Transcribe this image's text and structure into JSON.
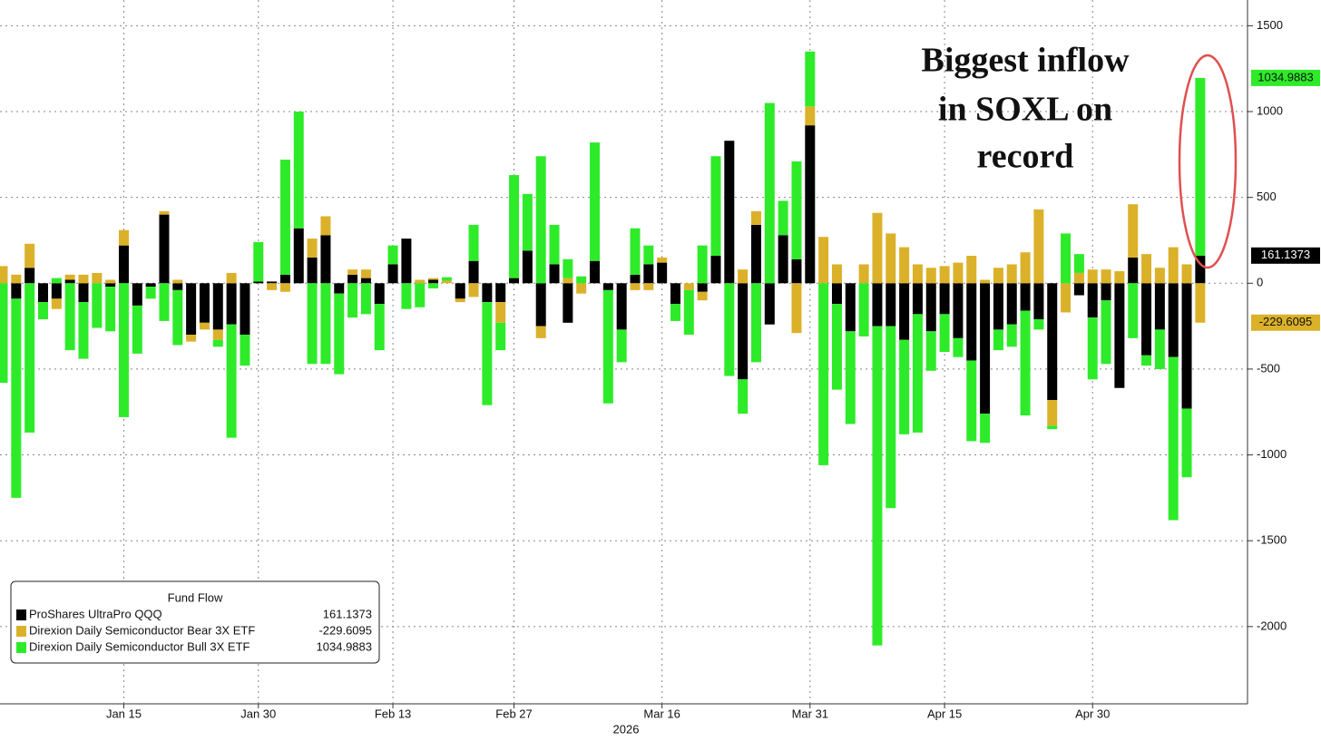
{
  "chart_data": {
    "type": "stacked_bar",
    "categories": [
      null,
      null,
      null,
      null,
      null,
      null,
      null,
      null,
      null,
      "Jan 15",
      null,
      null,
      null,
      null,
      null,
      null,
      null,
      null,
      null,
      "Jan 30",
      null,
      null,
      null,
      null,
      null,
      null,
      null,
      null,
      null,
      "Feb 13",
      null,
      null,
      null,
      null,
      null,
      null,
      null,
      null,
      "Feb 27",
      null,
      null,
      null,
      null,
      null,
      null,
      null,
      null,
      null,
      null,
      "Mar 16",
      null,
      null,
      null,
      null,
      null,
      null,
      null,
      null,
      null,
      null,
      "Mar 31",
      null,
      null,
      null,
      null,
      null,
      null,
      null,
      null,
      null,
      "Apr 15",
      null,
      null,
      null,
      null,
      null,
      null,
      null,
      null,
      null,
      null,
      "Apr 30",
      null,
      null,
      null,
      null,
      null,
      null,
      null,
      null
    ],
    "xlabel": "2026",
    "series": [
      {
        "name": "ProShares UltraPro QQQ",
        "color": "#000000",
        "values": [
          0,
          -90,
          90,
          -110,
          -90,
          20,
          -110,
          0,
          -20,
          220,
          -130,
          -20,
          400,
          -40,
          -300,
          -230,
          -270,
          -240,
          -300,
          10,
          10,
          50,
          320,
          150,
          280,
          -60,
          50,
          30,
          -120,
          110,
          260,
          0,
          20,
          0,
          -90,
          130,
          -110,
          -110,
          30,
          190,
          -250,
          110,
          -230,
          0,
          130,
          -40,
          -270,
          50,
          110,
          120,
          -120,
          0,
          -50,
          160,
          830,
          -560,
          340,
          -240,
          280,
          140,
          920,
          0,
          -120,
          -280,
          0,
          -250,
          -250,
          -330,
          -180,
          -280,
          -180,
          -320,
          -450,
          -760,
          -270,
          -240,
          -160,
          -210,
          -680,
          0,
          -70,
          -200,
          -100,
          -610,
          150,
          -420,
          -270,
          -430,
          -730,
          161.1373
        ]
      },
      {
        "name": "Direxion Daily Semiconductor Bear 3X ETF",
        "color": "#dbb12a",
        "values": [
          100,
          50,
          140,
          0,
          -60,
          30,
          50,
          60,
          20,
          90,
          0,
          0,
          20,
          20,
          -40,
          -40,
          -60,
          60,
          0,
          0,
          -40,
          -50,
          0,
          110,
          110,
          0,
          30,
          50,
          0,
          0,
          0,
          20,
          10,
          15,
          -20,
          -80,
          0,
          -120,
          0,
          0,
          -70,
          0,
          30,
          -60,
          0,
          0,
          0,
          -40,
          -40,
          30,
          0,
          -40,
          -50,
          0,
          0,
          80,
          80,
          0,
          0,
          -290,
          110,
          270,
          110,
          0,
          110,
          410,
          290,
          210,
          110,
          90,
          100,
          120,
          160,
          20,
          90,
          110,
          180,
          430,
          -150,
          -170,
          60,
          80,
          80,
          70,
          310,
          170,
          90,
          210,
          110,
          -229.6095
        ]
      },
      {
        "name": "Direxion Daily Semiconductor Bull 3X ETF",
        "color": "#2eeb2a",
        "values": [
          -580,
          -1160,
          -870,
          -100,
          30,
          -390,
          -330,
          -260,
          -260,
          -780,
          -280,
          -70,
          -220,
          -320,
          0,
          0,
          -40,
          -660,
          -180,
          230,
          0,
          670,
          680,
          -470,
          -470,
          -470,
          -200,
          -180,
          -270,
          110,
          -150,
          -140,
          -30,
          20,
          0,
          210,
          -600,
          -160,
          600,
          330,
          740,
          230,
          110,
          40,
          690,
          -660,
          -190,
          270,
          110,
          0,
          -100,
          -260,
          220,
          580,
          -540,
          -200,
          -460,
          1050,
          200,
          570,
          320,
          -1060,
          -500,
          -540,
          -310,
          -1860,
          -1060,
          -550,
          -690,
          -230,
          -220,
          -110,
          -470,
          -170,
          -120,
          -130,
          -610,
          -60,
          -20,
          290,
          110,
          -360,
          -370,
          0,
          -320,
          -60,
          -230,
          -950,
          -400,
          1034.9883
        ]
      }
    ],
    "ylim": [
      -2450,
      1650
    ],
    "yticks": [
      -2000,
      -1500,
      -1000,
      -500,
      0,
      500,
      1000,
      1500
    ],
    "grid": true,
    "legend_title": "Fund Flow",
    "legend_position": "lower left",
    "annotation": [
      "Biggest inflow",
      "in SOXL on",
      "record"
    ]
  }
}
